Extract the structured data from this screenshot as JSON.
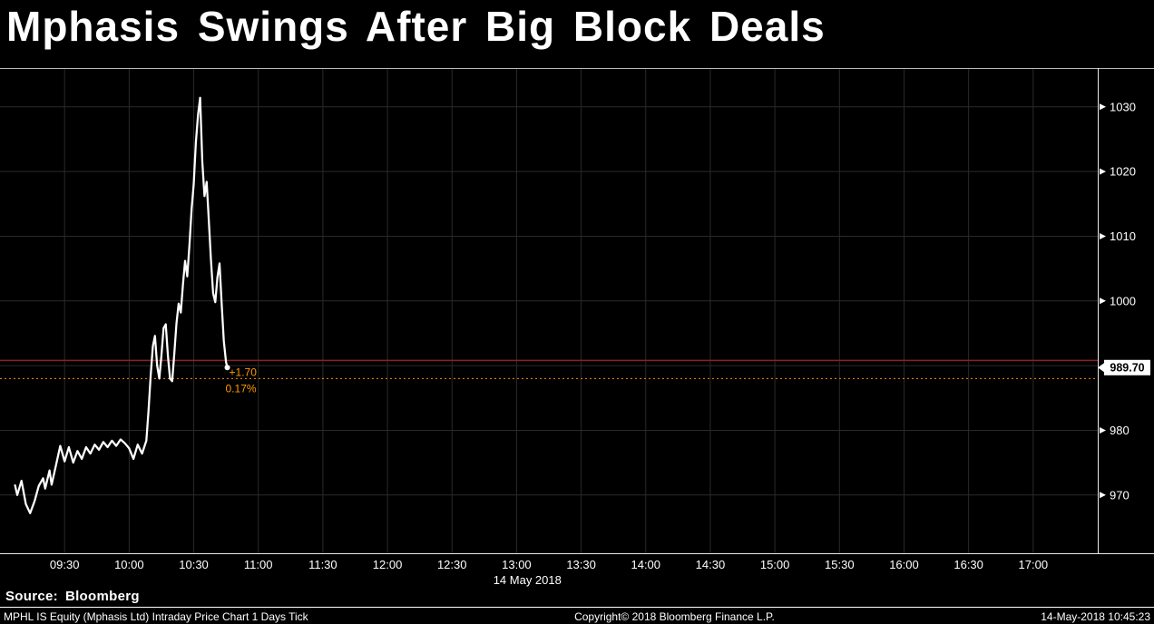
{
  "header": {
    "title": "Mphasis Swings After Big Block Deals"
  },
  "source_line": {
    "label": "Source:",
    "value": "Bloomberg"
  },
  "footer": {
    "left": "MPHL IS Equity (Mphasis Ltd) Intraday Price Chart 1 Days  Tick",
    "center": "Copyright© 2018 Bloomberg Finance L.P.",
    "right": "14-May-2018 10:45:23"
  },
  "chart_data": {
    "type": "line",
    "title": "MPHL IS Equity intraday price",
    "instrument": "MPHL IS Equity (Mphasis Ltd)",
    "minutes_from": "09:00",
    "x_axis": {
      "label": "14 May 2018",
      "label_anchor_minutes": 245,
      "domain_minutes": [
        0,
        510
      ],
      "tick_minutes": [
        30,
        60,
        90,
        120,
        150,
        180,
        210,
        240,
        270,
        300,
        330,
        360,
        390,
        420,
        450,
        480
      ],
      "tick_labels": [
        "09:30",
        "10:00",
        "10:30",
        "11:00",
        "11:30",
        "12:00",
        "12:30",
        "13:00",
        "13:30",
        "14:00",
        "14:30",
        "15:00",
        "15:30",
        "16:00",
        "16:30",
        "17:00"
      ]
    },
    "y_axis": {
      "domain": [
        961,
        1036
      ],
      "ticks": [
        970,
        980,
        1000,
        1010,
        1020,
        1030
      ],
      "grid_ticks": [
        970,
        980,
        990,
        1000,
        1010,
        1020,
        1030
      ]
    },
    "series": [
      {
        "name": "MPHL IS Equity last price",
        "color": "#ffffff",
        "points": [
          [
            7,
            971.5
          ],
          [
            8,
            970.0
          ],
          [
            10,
            972.2
          ],
          [
            12,
            968.6
          ],
          [
            14,
            967.2
          ],
          [
            16,
            969.0
          ],
          [
            18,
            971.4
          ],
          [
            20,
            972.6
          ],
          [
            21,
            971.0
          ],
          [
            23,
            973.8
          ],
          [
            24,
            971.6
          ],
          [
            26,
            974.6
          ],
          [
            28,
            977.6
          ],
          [
            30,
            975.2
          ],
          [
            32,
            977.4
          ],
          [
            34,
            975.0
          ],
          [
            36,
            976.8
          ],
          [
            38,
            975.6
          ],
          [
            40,
            977.4
          ],
          [
            42,
            976.4
          ],
          [
            44,
            977.8
          ],
          [
            46,
            977.0
          ],
          [
            48,
            978.2
          ],
          [
            50,
            977.4
          ],
          [
            52,
            978.4
          ],
          [
            54,
            977.6
          ],
          [
            56,
            978.6
          ],
          [
            58,
            978.0
          ],
          [
            60,
            977.2
          ],
          [
            62,
            975.6
          ],
          [
            64,
            977.8
          ],
          [
            66,
            976.4
          ],
          [
            68,
            978.4
          ],
          [
            69,
            983.0
          ],
          [
            70,
            988.5
          ],
          [
            71,
            993.0
          ],
          [
            72,
            994.6
          ],
          [
            73,
            990.0
          ],
          [
            74,
            988.0
          ],
          [
            75,
            991.5
          ],
          [
            76,
            995.8
          ],
          [
            77,
            996.4
          ],
          [
            78,
            991.5
          ],
          [
            79,
            988.0
          ],
          [
            80,
            987.6
          ],
          [
            81,
            992.0
          ],
          [
            82,
            996.5
          ],
          [
            83,
            999.6
          ],
          [
            84,
            998.2
          ],
          [
            85,
            1002.6
          ],
          [
            86,
            1006.2
          ],
          [
            87,
            1003.8
          ],
          [
            88,
            1008.6
          ],
          [
            89,
            1014.2
          ],
          [
            90,
            1018.0
          ],
          [
            91,
            1024.5
          ],
          [
            92,
            1028.8
          ],
          [
            93,
            1031.4
          ],
          [
            94,
            1021.5
          ],
          [
            95,
            1016.2
          ],
          [
            96,
            1018.4
          ],
          [
            97,
            1012.6
          ],
          [
            98,
            1006.4
          ],
          [
            99,
            1001.2
          ],
          [
            100,
            999.8
          ],
          [
            101,
            1003.6
          ],
          [
            102,
            1005.8
          ],
          [
            103,
            999.4
          ],
          [
            104,
            993.8
          ],
          [
            105,
            990.6
          ],
          [
            105.6,
            989.7
          ]
        ]
      }
    ],
    "last_price": {
      "value": "989.70",
      "y": 989.7
    },
    "prev_close_line": {
      "value": 988.0,
      "color": "#ff8c00",
      "style": "dotted"
    },
    "ref_line": {
      "value": 990.8,
      "color": "#8b2222",
      "style": "solid"
    },
    "change_labels": {
      "abs": "+1.70",
      "pct": "0.17%",
      "color": "#ff9a00"
    },
    "colors": {
      "background": "#000000",
      "grid": "#2a2a2a",
      "axis": "#e8e8e8",
      "line": "#ffffff"
    }
  }
}
